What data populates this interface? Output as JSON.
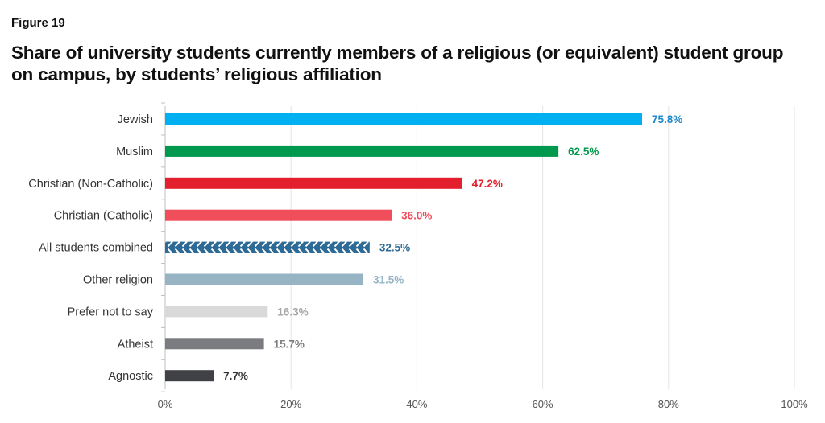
{
  "figure_label": "Figure 19",
  "chart_data": {
    "type": "bar",
    "orientation": "horizontal",
    "title": "Share of university students currently members of a religious (or equivalent) student group on campus, by students’ religious affiliation",
    "categories": [
      "Jewish",
      "Muslim",
      "Christian (Non-Catholic)",
      "Christian (Catholic)",
      "All students combined",
      "Other religion",
      "Prefer not to say",
      "Atheist",
      "Agnostic"
    ],
    "values": [
      75.8,
      62.5,
      47.2,
      36.0,
      32.5,
      31.5,
      16.3,
      15.7,
      7.7
    ],
    "value_labels": [
      "75.8%",
      "62.5%",
      "47.2%",
      "36.0%",
      "32.5%",
      "31.5%",
      "16.3%",
      "15.7%",
      "7.7%"
    ],
    "colors": [
      "#00b0f0",
      "#00994d",
      "#e31e2d",
      "#f04e5b",
      "#2d6a96",
      "#97b4c4",
      "#d9d9d9",
      "#7b7c80",
      "#404145"
    ],
    "label_colors": [
      "#1e88c9",
      "#00994d",
      "#e31e2d",
      "#f04e5b",
      "#2d6a96",
      "#97b4c4",
      "#a6a6a6",
      "#7b7c80",
      "#333333"
    ],
    "patterns": [
      "solid",
      "solid",
      "solid",
      "solid",
      "chevron",
      "solid",
      "solid",
      "solid",
      "solid"
    ],
    "xlim": [
      0,
      100
    ],
    "x_ticks": [
      "0%",
      "20%",
      "40%",
      "60%",
      "80%",
      "100%"
    ],
    "grid": true,
    "xlabel": "",
    "ylabel": ""
  }
}
